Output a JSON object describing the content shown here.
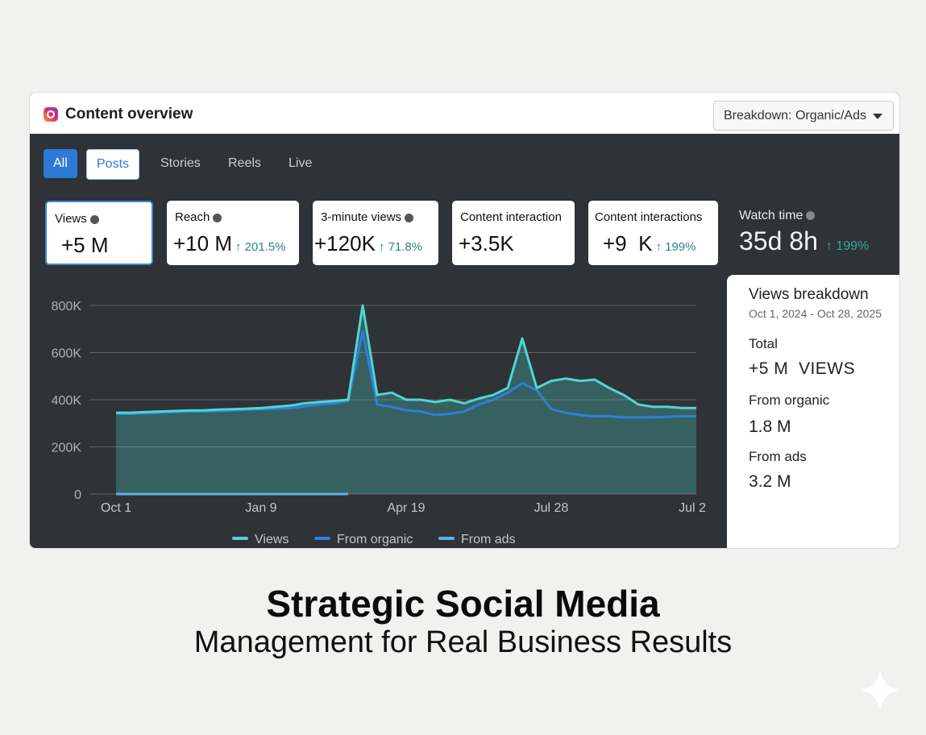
{
  "header": {
    "title": "Content overview",
    "dropdown": "Breakdown: Organic/Ads"
  },
  "tabs": [
    "All",
    "Posts",
    "Stories",
    "Reels",
    "Live"
  ],
  "metrics": [
    {
      "label": "Views",
      "value": "+5 M"
    },
    {
      "label": "Reach",
      "value": "+10 M",
      "change": "↑ 201.5%"
    },
    {
      "label": "3-minute views",
      "value": "+120K",
      "change": "↑ 71.8%"
    },
    {
      "label": "Content interaction",
      "value": "+3.5K"
    },
    {
      "label": "Content interactions",
      "value": "+9  K",
      "change": "↑ 199%"
    },
    {
      "label": "Watch time",
      "value": "35d 8h",
      "change": "↑ 199%"
    }
  ],
  "side_panel": {
    "title": "Views breakdown",
    "date_range": "Oct 1, 2024 - Oct 28, 2025",
    "items": [
      {
        "label": "Total",
        "value": "+5 M  VIEWS"
      },
      {
        "label": "From organic",
        "value": "1.8 M"
      },
      {
        "label": "From ads",
        "value": "3.2 M"
      }
    ]
  },
  "chart_data": {
    "type": "line",
    "categories": [
      "Oct 1",
      null,
      null,
      null,
      null,
      null,
      null,
      null,
      null,
      null,
      "Jan 9",
      null,
      null,
      null,
      null,
      null,
      null,
      null,
      null,
      null,
      "Apr 19",
      null,
      null,
      null,
      null,
      null,
      null,
      null,
      null,
      null,
      "Jul 28",
      null,
      null,
      null,
      null,
      null,
      null,
      null,
      null,
      null,
      "Jul 2"
    ],
    "series": [
      {
        "name": "Views",
        "color": "#4fd6cf",
        "values": [
          345000,
          345000,
          348000,
          350000,
          352000,
          355000,
          355000,
          358000,
          360000,
          362000,
          365000,
          370000,
          375000,
          385000,
          390000,
          395000,
          400000,
          800000,
          420000,
          430000,
          400000,
          400000,
          390000,
          400000,
          385000,
          405000,
          420000,
          450000,
          660000,
          450000,
          480000,
          490000,
          480000,
          485000,
          450000,
          420000,
          380000,
          370000,
          370000,
          365000,
          365000
        ]
      },
      {
        "name": "From organic",
        "color": "#2f7fd9",
        "values": [
          340000,
          340000,
          342000,
          345000,
          348000,
          350000,
          350000,
          352000,
          355000,
          358000,
          360000,
          362000,
          365000,
          372000,
          380000,
          385000,
          395000,
          690000,
          380000,
          370000,
          355000,
          350000,
          335000,
          340000,
          350000,
          380000,
          400000,
          430000,
          470000,
          440000,
          360000,
          345000,
          335000,
          330000,
          330000,
          325000,
          325000,
          325000,
          328000,
          330000,
          330000
        ]
      },
      {
        "name": "From ads",
        "color": "#5fb0e0",
        "values": [
          0,
          0,
          0,
          0,
          0,
          0,
          0,
          0,
          0,
          0,
          0,
          0,
          0,
          0,
          0,
          0,
          0,
          null,
          null,
          null,
          null,
          null,
          null,
          null,
          null,
          null,
          null,
          null,
          null,
          null,
          null,
          null,
          null,
          null,
          null,
          null,
          null,
          null,
          null,
          null,
          null
        ]
      }
    ],
    "ylim": [
      0,
      800000
    ],
    "yticks": [
      0,
      {
        "value": 200000,
        "label": "200K"
      },
      {
        "value": 400000,
        "label": "400K"
      },
      {
        "value": 600000,
        "label": "600K"
      },
      {
        "value": 800000,
        "label": "800K"
      }
    ],
    "grid": true
  },
  "footer": {
    "title": "Strategic Social Media",
    "subtitle": "Management for Real Business Results"
  }
}
